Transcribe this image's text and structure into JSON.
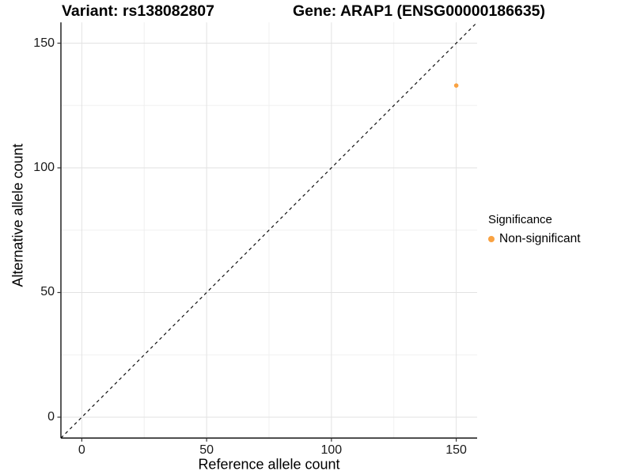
{
  "chart_data": {
    "type": "scatter",
    "title": "Variant: rs138082807        Gene: ARAP1 (ENSG00000186635)",
    "title_left": "Variant: rs138082807",
    "title_right": "Gene: ARAP1 (ENSG00000186635)",
    "xlabel": "Reference allele count",
    "ylabel": "Alternative allele count",
    "xlim": [
      -8.36,
      158.36
    ],
    "ylim": [
      -8.36,
      158.36
    ],
    "x_ticks": [
      0,
      50,
      100,
      150
    ],
    "y_ticks": [
      0,
      50,
      100,
      150
    ],
    "x_minor_ticks": [
      25,
      75,
      125
    ],
    "y_minor_ticks": [
      25,
      75,
      125
    ],
    "grid": true,
    "aspect": "equal",
    "series": [
      {
        "name": "Non-significant",
        "color": "#F9A242",
        "points": [
          {
            "x": 150,
            "y": 133
          }
        ]
      }
    ],
    "reference_line": {
      "type": "identity",
      "style": "dashed",
      "color": "#111111"
    },
    "legend": {
      "title": "Significance",
      "position": "right",
      "entries": [
        {
          "label": "Non-significant",
          "color": "#F9A242"
        }
      ]
    },
    "colors": {
      "background": "#FFFFFF",
      "panel_background": "#FFFFFF",
      "grid_major": "#E2E2E2",
      "grid_minor": "#F0F0F0",
      "axis_line": "#000000",
      "tick": "#333333",
      "point": "#F9A242"
    }
  }
}
